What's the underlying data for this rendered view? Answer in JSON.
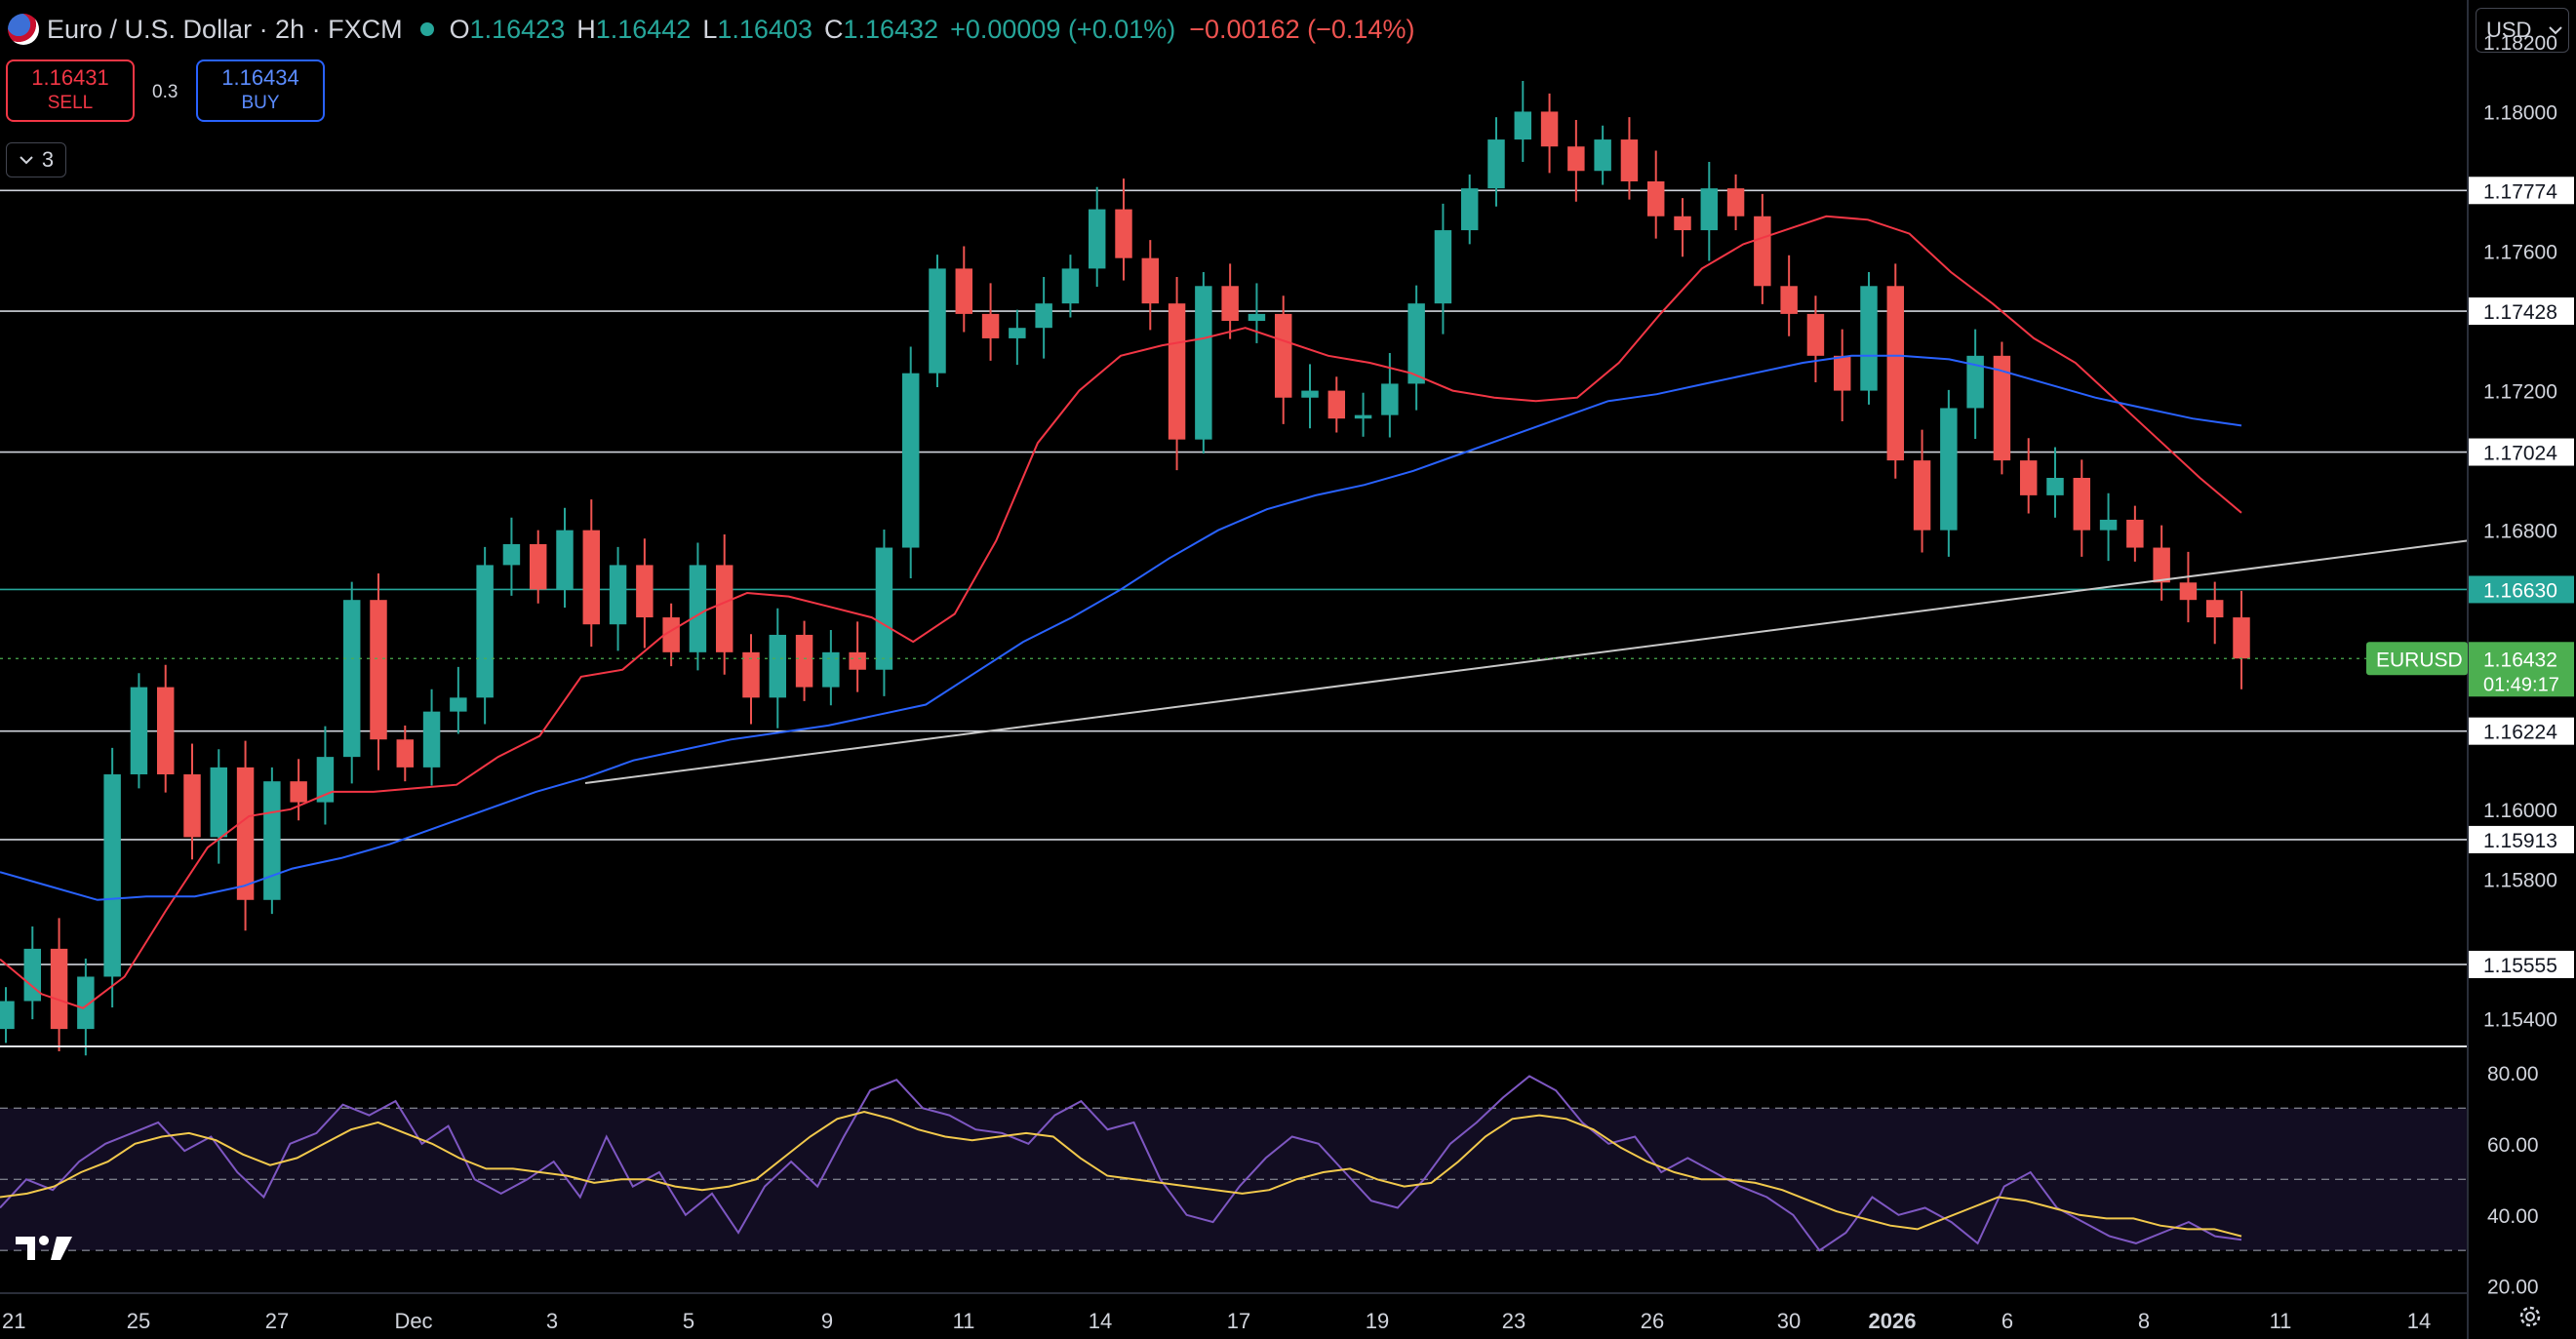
{
  "header": {
    "symbol": "Euro / U.S. Dollar · 2h · FXCM",
    "open_label": "O",
    "open": "1.16423",
    "high_label": "H",
    "high": "1.16442",
    "low_label": "L",
    "low": "1.16403",
    "close_label": "C",
    "close": "1.16432",
    "change": "+0.00009 (+0.01%)",
    "session_change": "−0.00162 (−0.14%)",
    "flag_icon": "eu-us-flag-icon",
    "status_color": "#26a69a"
  },
  "trade": {
    "sell_price": "1.16431",
    "sell_label": "SELL",
    "spread": "0.3",
    "buy_price": "1.16434",
    "buy_label": "BUY",
    "sell_color": "#f23645",
    "buy_color": "#2962ff"
  },
  "indicators_toggle": {
    "count": "3",
    "icon": "chevron-down-icon"
  },
  "currency": {
    "label": "USD",
    "icon": "chevron-down-icon"
  },
  "chart_data": [
    {
      "type": "line",
      "series": [
        {
          "values": [
            1.1545,
            1.156,
            1.1537,
            1.1552,
            1.161,
            1.1635,
            1.161,
            1.1592,
            1.1612,
            1.1574,
            1.1608,
            1.1602,
            1.1615,
            1.166,
            1.162,
            1.1612,
            1.1628,
            1.1632,
            1.167,
            1.1676,
            1.1663,
            1.168,
            1.1653,
            1.167,
            1.1655,
            1.1645,
            1.167,
            1.1645,
            1.1632,
            1.165,
            1.1635,
            1.1645,
            1.164,
            1.1675,
            1.1725,
            1.1755,
            1.1742,
            1.1735,
            1.1738,
            1.1745,
            1.1755,
            1.1772,
            1.1758,
            1.1745,
            1.1706,
            1.175,
            1.174,
            1.1742,
            1.1718,
            1.172,
            1.1712,
            1.1713,
            1.1722,
            1.1745,
            1.1766,
            1.1778,
            1.1792,
            1.18,
            1.179,
            1.1783,
            1.1792,
            1.178,
            1.177,
            1.1766,
            1.1778,
            1.177,
            1.175,
            1.1742,
            1.173,
            1.172,
            1.175,
            1.17,
            1.168,
            1.1715,
            1.173,
            1.17,
            1.169,
            1.1695,
            1.168,
            1.1683,
            1.1675,
            1.1665,
            1.166,
            1.1655,
            1.16432
          ],
          "color": "#26a69a"
        },
        {
          "values": [
            1.1557,
            1.1547,
            1.1543,
            1.1552,
            1.1571,
            1.1589,
            1.1598,
            1.16,
            1.1605,
            1.1605,
            1.1606,
            1.1607,
            1.1615,
            1.1621,
            1.1638,
            1.164,
            1.165,
            1.1657,
            1.1662,
            1.1661,
            1.1658,
            1.1655,
            1.1648,
            1.1656,
            1.1677,
            1.1705,
            1.172,
            1.173,
            1.1733,
            1.1735,
            1.1738,
            1.1734,
            1.173,
            1.1728,
            1.1725,
            1.172,
            1.1718,
            1.1717,
            1.1718,
            1.1728,
            1.1742,
            1.1755,
            1.1762,
            1.1766,
            1.177,
            1.1769,
            1.1765,
            1.1754,
            1.1745,
            1.1735,
            1.1728,
            1.1717,
            1.1706,
            1.1695,
            1.1685
          ],
          "color": "#f23645"
        },
        {
          "values": [
            1.1582,
            1.1578,
            1.1574,
            1.1575,
            1.1575,
            1.1578,
            1.1583,
            1.1586,
            1.159,
            1.1595,
            1.16,
            1.1605,
            1.1609,
            1.1614,
            1.1617,
            1.162,
            1.1622,
            1.1624,
            1.1627,
            1.163,
            1.1639,
            1.1648,
            1.1655,
            1.1663,
            1.1672,
            1.168,
            1.1686,
            1.169,
            1.1693,
            1.1697,
            1.1702,
            1.1707,
            1.1712,
            1.1717,
            1.1719,
            1.1722,
            1.1725,
            1.1728,
            1.173,
            1.173,
            1.1729,
            1.1726,
            1.1722,
            1.1718,
            1.1715,
            1.1712,
            1.171
          ],
          "color": "#2962ff"
        },
        {
          "x": [
            "Dec 3",
            "Jan 12"
          ],
          "values": [
            1.16075,
            1.1677
          ],
          "color": "#c8c8c8"
        }
      ],
      "horizontal_levels": [
        "1.17774",
        "1.17428",
        "1.17024",
        "1.16630",
        "1.16224",
        "1.15913",
        "1.15555"
      ],
      "price_axis": [
        "1.18200",
        "1.18000",
        "1.17600",
        "1.17200",
        "1.16800",
        "1.16000",
        "1.15800",
        "1.15400"
      ],
      "symbol_label": "EURUSD",
      "last_price": "1.16432",
      "countdown": "01:49:17",
      "ylim": [
        1.1532,
        1.1832
      ],
      "colors": {
        "up": "#26a69a",
        "down": "#ef5350",
        "level": "#d1d4dc",
        "green_level": "#26a69a"
      }
    },
    {
      "type": "line",
      "series": [
        {
          "values": [
            42,
            50,
            47,
            55,
            60,
            63,
            66,
            58,
            62,
            52,
            45,
            60,
            63,
            71,
            68,
            72,
            60,
            65,
            50,
            46,
            50,
            55,
            45,
            62,
            48,
            52,
            40,
            46,
            35,
            48,
            55,
            48,
            62,
            75,
            78,
            70,
            68,
            64,
            63,
            60,
            68,
            72,
            64,
            66,
            50,
            40,
            38,
            48,
            56,
            62,
            60,
            52,
            44,
            42,
            50,
            60,
            66,
            73,
            79,
            75,
            66,
            60,
            62,
            52,
            56,
            52,
            48,
            45,
            40,
            30,
            35,
            45,
            40,
            42,
            38,
            32,
            48,
            52,
            42,
            38,
            34,
            32,
            35,
            38,
            34,
            33
          ],
          "color": "#7e57c2"
        },
        {
          "values": [
            45,
            46,
            48,
            52,
            55,
            60,
            62,
            63,
            61,
            57,
            54,
            56,
            60,
            64,
            66,
            63,
            60,
            56,
            53,
            53,
            52,
            51,
            49,
            50,
            50,
            48,
            47,
            48,
            50,
            56,
            62,
            67,
            69,
            67,
            64,
            62,
            61,
            62,
            63,
            62,
            56,
            51,
            50,
            49,
            48,
            47,
            46,
            47,
            50,
            52,
            53,
            50,
            48,
            49,
            55,
            62,
            67,
            68,
            67,
            64,
            59,
            55,
            52,
            50,
            50,
            49,
            47,
            44,
            41,
            39,
            37,
            36,
            39,
            42,
            45,
            44,
            42,
            40,
            39,
            39,
            37,
            36,
            36,
            34
          ],
          "color": "#f2c94c"
        }
      ],
      "levels": [
        70,
        50,
        30
      ],
      "ticks": [
        "80.00",
        "60.00",
        "40.00",
        "20.00"
      ],
      "ylim": [
        18,
        86
      ]
    }
  ],
  "time_axis": [
    "21",
    "25",
    "27",
    "Dec",
    "3",
    "5",
    "9",
    "11",
    "14",
    "17",
    "19",
    "23",
    "26",
    "30",
    "2026",
    "6",
    "8",
    "11",
    "14"
  ]
}
